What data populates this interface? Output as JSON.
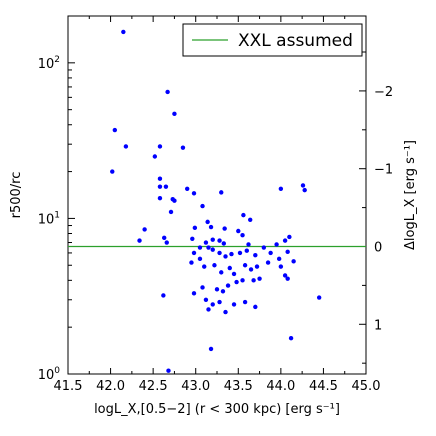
{
  "chart_data": {
    "type": "scatter",
    "title": "",
    "xlabel": "logL_X,[0.5−2] (r < 300 kpc) [erg s⁻¹]",
    "ylabel_left": "r500/rc",
    "ylabel_right": "ΔlogL_X [erg s⁻¹]",
    "xlim": [
      41.5,
      45.0
    ],
    "ylim": [
      1,
      200
    ],
    "yscale": "log",
    "x_ticks": [
      "41.5",
      "42.0",
      "42.5",
      "43.0",
      "43.5",
      "44.0",
      "44.5",
      "45.0"
    ],
    "y_ticks_left": [
      {
        "value": 1,
        "label": "10",
        "exp": "0"
      },
      {
        "value": 10,
        "label": "10",
        "exp": "1"
      },
      {
        "value": 100,
        "label": "10",
        "exp": "2"
      }
    ],
    "y_ticks_right": [
      {
        "value": -2,
        "label": "−2"
      },
      {
        "value": -1,
        "label": "−1"
      },
      {
        "value": 0,
        "label": "0"
      },
      {
        "value": 1,
        "label": "1"
      }
    ],
    "right_axis_mapping": {
      "zero_at_left_value": 6.6,
      "decades_per_unit": 0.5
    },
    "reference_line": {
      "name": "XXL assumed",
      "y": 6.6,
      "color": "#2ca02c"
    },
    "legend": {
      "position": "upper-right",
      "entries": [
        "XXL assumed"
      ]
    },
    "grid": false,
    "series": [
      {
        "marker_color": "#0000ff",
        "x": [
          42.15,
          42.67,
          42.75,
          42.05,
          42.18,
          42.58,
          42.85,
          42.02,
          42.52,
          42.58,
          42.58,
          42.65,
          42.75,
          42.9,
          42.58,
          42.73,
          42.98,
          43.3,
          42.71,
          43.08,
          42.4,
          42.99,
          43.14,
          43.18,
          43.34,
          43.56,
          43.64,
          44.0,
          44.26,
          44.28,
          42.34,
          42.63,
          42.66,
          42.96,
          43.12,
          43.2,
          43.15,
          43.28,
          43.33,
          43.5,
          43.55,
          43.62,
          43.8,
          43.95,
          44.05,
          44.1,
          42.98,
          43.05,
          43.2,
          43.28,
          43.35,
          43.42,
          43.52,
          43.6,
          43.7,
          43.88,
          43.98,
          44.08,
          44.15,
          42.95,
          43.05,
          43.1,
          43.22,
          43.3,
          43.4,
          43.45,
          43.58,
          43.65,
          43.72,
          43.85,
          44.0,
          44.05,
          42.62,
          42.98,
          43.08,
          43.25,
          43.32,
          43.38,
          43.48,
          43.55,
          43.68,
          43.75,
          44.08,
          44.45,
          43.12,
          43.2,
          43.35,
          43.58,
          43.7,
          43.15,
          43.28,
          43.45,
          44.12,
          43.18,
          42.68
        ],
        "y": [
          158,
          65,
          47,
          37,
          29,
          29,
          28.5,
          20,
          25,
          18,
          16,
          16,
          13,
          15.5,
          13.5,
          13.3,
          14.5,
          14.7,
          11,
          12,
          8.5,
          8.7,
          9.5,
          8.8,
          8.6,
          10.5,
          9.8,
          15.5,
          16.3,
          15.2,
          7.2,
          7.5,
          7.0,
          7.4,
          7.0,
          7.3,
          6.5,
          7.2,
          6.9,
          8.3,
          7.8,
          6.8,
          6.5,
          6.8,
          7.2,
          7.6,
          6.0,
          6.5,
          6.3,
          6.0,
          5.7,
          5.9,
          6.0,
          6.2,
          5.8,
          6.0,
          5.5,
          6.1,
          5.3,
          5.2,
          5.5,
          4.9,
          5.0,
          4.5,
          4.8,
          4.4,
          5.0,
          4.7,
          4.9,
          5.2,
          4.9,
          4.3,
          3.2,
          3.3,
          3.6,
          3.5,
          3.4,
          3.7,
          3.9,
          4.0,
          4.0,
          4.1,
          4.1,
          3.1,
          3.0,
          2.8,
          2.5,
          2.9,
          2.7,
          2.6,
          2.9,
          2.8,
          1.7,
          1.45,
          1.05
        ]
      }
    ]
  }
}
